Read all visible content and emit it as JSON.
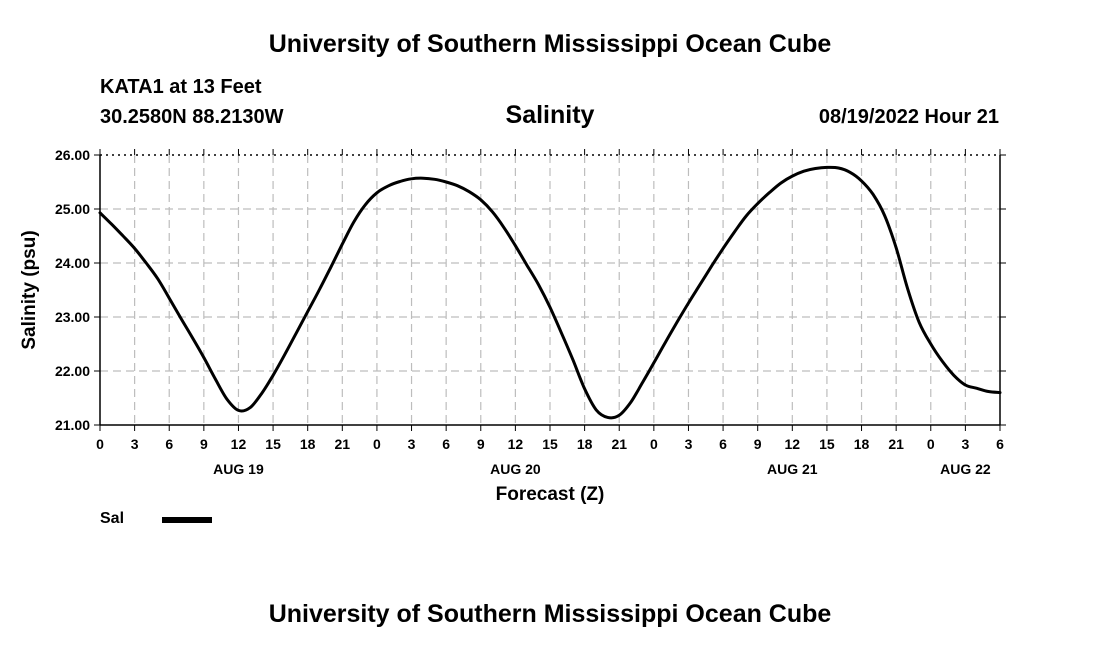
{
  "header": {
    "title": "University of Southern Mississippi Ocean Cube",
    "station": "KATA1 at 13 Feet",
    "coordinates": "30.2580N  88.2130W",
    "chart_title": "Salinity",
    "datetime": "08/19/2022 Hour 21"
  },
  "footer": {
    "title": "University of Southern Mississippi Ocean Cube"
  },
  "legend": {
    "label": "Sal"
  },
  "chart_data": {
    "type": "line",
    "title": "Salinity",
    "xlabel": "Forecast (Z)",
    "ylabel": "Salinity (psu)",
    "ylim": [
      21.0,
      26.0
    ],
    "yticks": [
      "21.00",
      "22.00",
      "23.00",
      "24.00",
      "25.00",
      "26.00"
    ],
    "xlim_hours": [
      0,
      78
    ],
    "xtick_labels": [
      "0",
      "3",
      "6",
      "9",
      "12",
      "15",
      "18",
      "21",
      "0",
      "3",
      "6",
      "9",
      "12",
      "15",
      "18",
      "21",
      "0",
      "3",
      "6",
      "9",
      "12",
      "15",
      "18",
      "21",
      "0",
      "3",
      "6"
    ],
    "day_labels": [
      {
        "label": "AUG 19",
        "hour": 12
      },
      {
        "label": "AUG 20",
        "hour": 36
      },
      {
        "label": "AUG 21",
        "hour": 60
      },
      {
        "label": "AUG 22",
        "hour": 75
      }
    ],
    "grid": true,
    "series": [
      {
        "name": "Sal",
        "color": "#000000",
        "x_hours": [
          0,
          1,
          2,
          3,
          4,
          5,
          6,
          7,
          8,
          9,
          10,
          11,
          12,
          13,
          14,
          15,
          16,
          17,
          18,
          19,
          20,
          21,
          22,
          23,
          24,
          25,
          26,
          27,
          28,
          29,
          30,
          31,
          32,
          33,
          34,
          35,
          36,
          37,
          38,
          39,
          40,
          41,
          42,
          43,
          44,
          45,
          46,
          47,
          48,
          49,
          50,
          51,
          52,
          53,
          54,
          55,
          56,
          57,
          58,
          59,
          60,
          61,
          62,
          63,
          64,
          65,
          66,
          67,
          68,
          69,
          70,
          71,
          72,
          73,
          74,
          75,
          76,
          77,
          78
        ],
        "values": [
          24.93,
          24.72,
          24.5,
          24.27,
          24.0,
          23.71,
          23.35,
          22.98,
          22.62,
          22.25,
          21.85,
          21.48,
          21.27,
          21.32,
          21.58,
          21.92,
          22.3,
          22.7,
          23.1,
          23.5,
          23.92,
          24.35,
          24.76,
          25.08,
          25.3,
          25.43,
          25.51,
          25.56,
          25.57,
          25.55,
          25.5,
          25.43,
          25.32,
          25.17,
          24.95,
          24.66,
          24.32,
          23.96,
          23.6,
          23.18,
          22.7,
          22.2,
          21.67,
          21.28,
          21.14,
          21.18,
          21.42,
          21.78,
          22.15,
          22.53,
          22.9,
          23.26,
          23.6,
          23.94,
          24.27,
          24.58,
          24.87,
          25.1,
          25.3,
          25.48,
          25.61,
          25.7,
          25.75,
          25.77,
          25.76,
          25.68,
          25.52,
          25.27,
          24.88,
          24.28,
          23.52,
          22.9,
          22.5,
          22.18,
          21.92,
          21.74,
          21.68,
          21.62,
          21.6
        ]
      }
    ]
  }
}
